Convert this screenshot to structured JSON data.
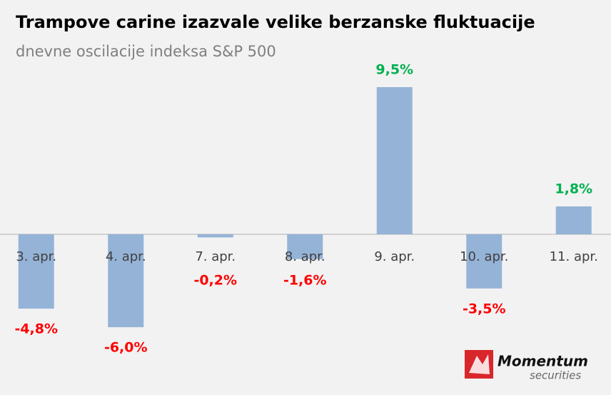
{
  "chart_data": {
    "type": "bar",
    "title": "Trampove carine izazvale velike berzanske fluktuacije",
    "subtitle": "dnevne oscilacije indeksa S&P 500",
    "categories": [
      "3. apr.",
      "4. apr.",
      "7. apr.",
      "8. apr.",
      "9. apr.",
      "10. apr.",
      "11. apr."
    ],
    "values": [
      -4.8,
      -6.0,
      -0.2,
      -1.6,
      9.5,
      -3.5,
      1.8
    ],
    "value_labels": [
      "-4,8%",
      "-6,0%",
      "-0,2%",
      "-1,6%",
      "9,5%",
      "-3,5%",
      "1,8%"
    ],
    "color": "#95b3d7",
    "label_colors": {
      "positive": "#00b050",
      "negative": "#ff0000"
    }
  },
  "logo": {
    "name": "Momentum",
    "sub": "securities"
  }
}
